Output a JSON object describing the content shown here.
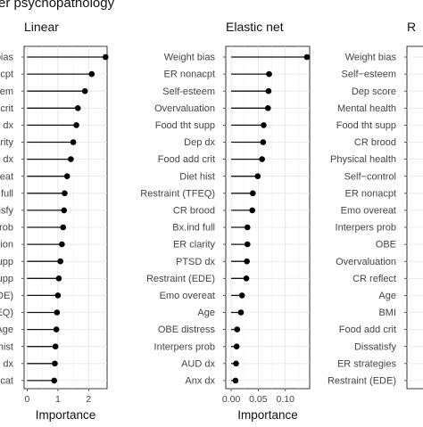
{
  "figure": {
    "title": "er psychopathology"
  },
  "chart_data": [
    {
      "type": "lollipop",
      "title": "Linear",
      "xlabel": "Importance",
      "xlim": [
        -0.1,
        2.6
      ],
      "xticks": [
        0,
        1,
        2
      ],
      "grid": true,
      "categories": [
        "bias",
        "ncpt",
        "steem",
        "crit",
        "dx",
        "larity",
        "dx",
        "ereat",
        "full",
        "tisfy",
        "prob",
        "lation",
        "upp",
        "supp",
        "DE)",
        "FEQ)",
        "Age",
        "hist",
        "dx",
        "cat"
      ],
      "values": [
        2.55,
        2.1,
        1.88,
        1.65,
        1.6,
        1.5,
        1.42,
        1.3,
        1.22,
        1.2,
        1.17,
        1.13,
        1.08,
        1.03,
        1.0,
        0.97,
        0.95,
        0.92,
        0.9,
        0.88
      ]
    },
    {
      "type": "lollipop",
      "title": "Elastic net",
      "xlabel": "Importance",
      "xlim": [
        -0.01,
        0.145
      ],
      "xticks": [
        0,
        0.05,
        0.1
      ],
      "xticklabels": [
        "0.00",
        "0.05",
        "0.10"
      ],
      "grid": true,
      "categories": [
        "Weight bias",
        "ER nonacpt",
        "Self-esteem",
        "Overvaluation",
        "Food tht supp",
        "Dep dx",
        "Food add crit",
        "Diet hist",
        "Restraint (TFEQ)",
        "CR brood",
        "Bx.ind full",
        "ER clarity",
        "PTSD dx",
        "Restraint (EDE)",
        "Emo overeat",
        "Age",
        "OBE distress",
        "Interpers prob",
        "AUD dx",
        "Anx dx"
      ],
      "values": [
        0.14,
        0.07,
        0.069,
        0.068,
        0.06,
        0.059,
        0.057,
        0.049,
        0.04,
        0.039,
        0.03,
        0.03,
        0.029,
        0.028,
        0.02,
        0.018,
        0.011,
        0.01,
        0.009,
        0.008
      ]
    },
    {
      "type": "lollipop",
      "title": "R",
      "categories": [
        "Weight bias",
        "Self−esteem",
        "Dep score",
        "Mental health",
        "Food tht supp",
        "CR brood",
        "Physical health",
        "Self−control",
        "ER nonacpt",
        "Emo overeat",
        "Interpers prob",
        "OBE",
        "Overvaluation",
        "CR reflect",
        "Age",
        "BMI",
        "Food add crit",
        "Dissatisfy",
        "ER strategies",
        "Restraint (EDE)"
      ]
    }
  ]
}
